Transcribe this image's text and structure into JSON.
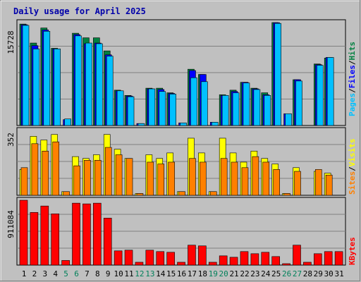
{
  "chart_data": [
    {
      "type": "bar",
      "title": "Daily usage for April 2025",
      "x": [
        "1",
        "2",
        "3",
        "4",
        "5",
        "6",
        "7",
        "8",
        "9",
        "10",
        "11",
        "12",
        "13",
        "14",
        "15",
        "16",
        "17",
        "18",
        "19",
        "20",
        "21",
        "22",
        "23",
        "24",
        "25",
        "26",
        "27",
        "28",
        "29",
        "30",
        "31"
      ],
      "weekend_days": [
        "5",
        "6",
        "12",
        "13",
        "19",
        "20",
        "26",
        "27"
      ],
      "ymax_label": "15728",
      "ymax": 15728,
      "side_labels": [
        "Pages",
        "/",
        "Files",
        "/",
        "Hits"
      ],
      "series": [
        {
          "name": "Hits",
          "color": "#008040",
          "values": [
            15500,
            12600,
            14900,
            11800,
            0,
            14100,
            13400,
            13400,
            11400,
            5400,
            4600,
            0,
            5700,
            5700,
            5000,
            0,
            8600,
            7800,
            0,
            4700,
            5400,
            6600,
            5700,
            5000,
            15728,
            0,
            7000,
            0,
            9400,
            10300,
            0
          ]
        },
        {
          "name": "Files",
          "color": "#0000ff",
          "values": [
            15400,
            12200,
            14600,
            11700,
            900,
            13900,
            12500,
            12600,
            10800,
            5300,
            4500,
            300,
            5600,
            5500,
            4900,
            400,
            8400,
            7800,
            500,
            4600,
            5200,
            6600,
            5600,
            4700,
            15700,
            1800,
            7000,
            0,
            9300,
            10400,
            0
          ]
        },
        {
          "name": "Pages",
          "color": "#00c0ff",
          "values": [
            15300,
            11700,
            14400,
            11700,
            1000,
            13700,
            12600,
            12500,
            10600,
            5300,
            4400,
            300,
            5600,
            5200,
            4800,
            400,
            7300,
            6700,
            500,
            4600,
            5000,
            6500,
            5500,
            4600,
            15600,
            1800,
            6800,
            0,
            9200,
            10400,
            0
          ]
        }
      ]
    },
    {
      "type": "bar",
      "ymax_label": "352",
      "ymax": 352,
      "side_labels": [
        "Sites",
        "/",
        "Visits"
      ],
      "series": [
        {
          "name": "Visits",
          "color": "#ffff00",
          "values": [
            140,
            320,
            300,
            330,
            20,
            210,
            200,
            220,
            330,
            250,
            200,
            10,
            220,
            200,
            230,
            20,
            310,
            230,
            20,
            310,
            230,
            180,
            240,
            200,
            170,
            10,
            150,
            0,
            130,
            120,
            0
          ]
        },
        {
          "name": "Sites",
          "color": "#ff8000",
          "values": [
            150,
            280,
            240,
            290,
            20,
            160,
            190,
            190,
            260,
            220,
            200,
            10,
            180,
            170,
            180,
            20,
            200,
            180,
            20,
            200,
            180,
            150,
            210,
            180,
            140,
            10,
            130,
            0,
            140,
            110,
            0
          ]
        }
      ]
    },
    {
      "type": "bar",
      "ymax_label": "911084",
      "ymax": 911084,
      "side_labels": [
        "KBytes"
      ],
      "series": [
        {
          "name": "KBytes",
          "color": "#ff0000",
          "values": [
            911084,
            740000,
            830000,
            720000,
            65000,
            870000,
            860000,
            870000,
            660000,
            200000,
            210000,
            40000,
            210000,
            190000,
            180000,
            40000,
            280000,
            270000,
            40000,
            130000,
            110000,
            190000,
            160000,
            180000,
            120000,
            20000,
            280000,
            40000,
            160000,
            190000,
            190000
          ]
        }
      ]
    }
  ]
}
